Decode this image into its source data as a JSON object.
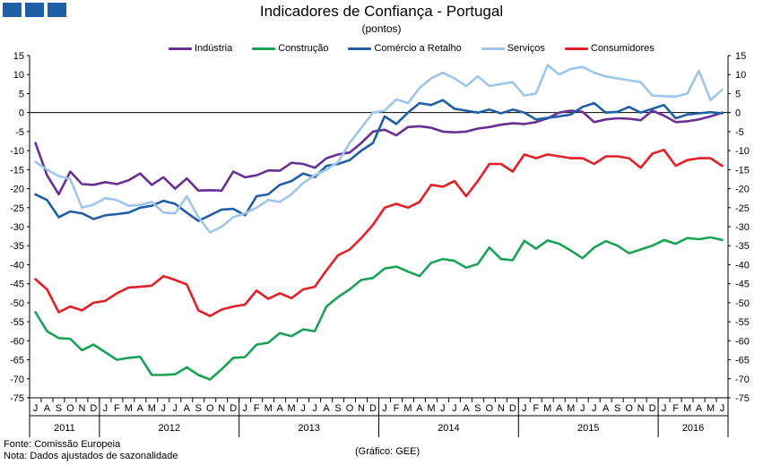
{
  "header": {
    "title": "Indicadores de Confiança - Portugal",
    "subtitle": "(pontos)"
  },
  "legend": [
    {
      "name": "Indústria",
      "color": "#6a2f92"
    },
    {
      "name": "Construção",
      "color": "#1aa356"
    },
    {
      "name": "Comércio a Retalho",
      "color": "#1f5fa5"
    },
    {
      "name": "Serviços",
      "color": "#9dc6ea"
    },
    {
      "name": "Consumidores",
      "color": "#e31f26"
    }
  ],
  "footer": {
    "source": "Fonte: Comissão Europeia",
    "note": "Nota: Dados ajustados de sazonalidade",
    "credit": "(Gráfico: GEE)"
  },
  "chart_data": {
    "type": "line",
    "title": "Indicadores de Confiança - Portugal",
    "ylabel": "(pontos)",
    "ylim": [
      -75,
      15
    ],
    "yticks": [
      15,
      10,
      5,
      0,
      -5,
      -10,
      -15,
      -20,
      -25,
      -30,
      -35,
      -40,
      -45,
      -50,
      -55,
      -60,
      -65,
      -70,
      -75
    ],
    "month_labels": [
      "J",
      "A",
      "S",
      "O",
      "N",
      "D",
      "J",
      "F",
      "M",
      "A",
      "M",
      "J",
      "J",
      "A",
      "S",
      "O",
      "N",
      "D",
      "J",
      "F",
      "M",
      "A",
      "M",
      "J",
      "J",
      "A",
      "S",
      "O",
      "N",
      "D",
      "J",
      "F",
      "M",
      "A",
      "M",
      "J",
      "J",
      "A",
      "S",
      "O",
      "N",
      "D",
      "J",
      "F",
      "M",
      "A",
      "M",
      "J",
      "J",
      "A",
      "S",
      "O",
      "N",
      "D",
      "J",
      "F",
      "M",
      "A",
      "M",
      "J"
    ],
    "years": [
      {
        "label": "2011",
        "start": 0,
        "count": 6
      },
      {
        "label": "2012",
        "start": 6,
        "count": 12
      },
      {
        "label": "2013",
        "start": 18,
        "count": 12
      },
      {
        "label": "2014",
        "start": 30,
        "count": 12
      },
      {
        "label": "2015",
        "start": 42,
        "count": 12
      },
      {
        "label": "2016",
        "start": 54,
        "count": 6
      }
    ],
    "series": [
      {
        "name": "Indústria",
        "color": "#6a2f92",
        "values": [
          -8,
          -16.5,
          -21.5,
          -15.5,
          -18.8,
          -19,
          -18.3,
          -18.8,
          -17.8,
          -16,
          -19,
          -17,
          -20,
          -17.3,
          -20.5,
          -20.4,
          -20.5,
          -15.5,
          -17,
          -16.5,
          -15.2,
          -15.3,
          -13.2,
          -13.5,
          -14.5,
          -12,
          -11,
          -10.5,
          -8,
          -5,
          -4.5,
          -6,
          -3.8,
          -3.6,
          -4,
          -5,
          -5.2,
          -5,
          -4.2,
          -3.8,
          -3.2,
          -2.8,
          -3,
          -2.5,
          -1.5,
          0,
          0.5,
          0.2,
          -2.5,
          -1.8,
          -1.5,
          -1.6,
          -2,
          0.5,
          -0.8,
          -2.5,
          -2.3,
          -1.8,
          -1,
          0
        ]
      },
      {
        "name": "Construção",
        "color": "#1aa356",
        "values": [
          -52.5,
          -57.5,
          -59.3,
          -59.5,
          -62.5,
          -61,
          -63,
          -65,
          -64.5,
          -64.2,
          -69,
          -69,
          -68.8,
          -67,
          -69,
          -70.2,
          -67.5,
          -64.5,
          -64.3,
          -61,
          -60.5,
          -58,
          -58.8,
          -57,
          -57.5,
          -51,
          -48.5,
          -46.5,
          -44,
          -43.5,
          -41,
          -40.5,
          -41.8,
          -43,
          -39.5,
          -38.5,
          -39,
          -40.8,
          -39.8,
          -35.5,
          -38.5,
          -38.8,
          -33.7,
          -35.8,
          -33.6,
          -34.5,
          -36.3,
          -38.3,
          -35.5,
          -33.8,
          -35,
          -37,
          -36,
          -35,
          -33.5,
          -34.5,
          -33,
          -33.3,
          -32.8,
          -33.5
        ]
      },
      {
        "name": "Comércio a Retalho",
        "color": "#1f5fa5",
        "values": [
          -21.5,
          -23,
          -27.5,
          -26,
          -26.5,
          -28,
          -27,
          -26.7,
          -26.3,
          -25,
          -24.5,
          -23.2,
          -24,
          -26.3,
          -28.5,
          -27,
          -25.5,
          -25.3,
          -27,
          -22,
          -21.5,
          -19,
          -18,
          -16,
          -17,
          -14,
          -13.5,
          -12.5,
          -10,
          -8,
          -1,
          -3,
          0,
          2.5,
          2,
          3.3,
          1,
          0.5,
          0,
          0.8,
          -0.2,
          0.8,
          0,
          -1.8,
          -1.4,
          -1,
          -0.5,
          1.5,
          2.5,
          0,
          0.2,
          1.5,
          0,
          1,
          2,
          -1.5,
          -0.5,
          -0.2,
          0.1,
          -0.2
        ]
      },
      {
        "name": "Serviços",
        "color": "#9dc6ea",
        "values": [
          -13,
          -15,
          -16.7,
          -17.5,
          -25,
          -24.2,
          -22.5,
          -23,
          -24.5,
          -24.3,
          -23.5,
          -26.3,
          -26.5,
          -22,
          -27.5,
          -31.5,
          -30,
          -27.5,
          -26.5,
          -25,
          -23,
          -23.5,
          -21.5,
          -18.5,
          -16.5,
          -15,
          -13,
          -8,
          -4,
          0,
          0.5,
          3.5,
          2.5,
          6.5,
          9,
          10.5,
          9,
          7,
          9.5,
          7,
          7.5,
          8,
          4.5,
          5,
          12.5,
          10,
          11.5,
          12,
          10.5,
          9.5,
          9,
          8.5,
          8,
          4.5,
          4.3,
          4.2,
          5,
          11,
          3.3,
          6
        ]
      },
      {
        "name": "Consumidores",
        "color": "#e31f26",
        "values": [
          -43.8,
          -46.5,
          -52.5,
          -51,
          -52,
          -50,
          -49.5,
          -47.5,
          -46,
          -45.8,
          -45.5,
          -43,
          -44,
          -45.2,
          -52,
          -53.5,
          -51.8,
          -51,
          -50.5,
          -46.8,
          -49,
          -47.5,
          -48.8,
          -46.5,
          -45.8,
          -41.5,
          -37.5,
          -36,
          -33,
          -29.5,
          -25,
          -24,
          -25,
          -23.5,
          -19,
          -19.5,
          -18,
          -22,
          -18,
          -13.5,
          -13.5,
          -15.5,
          -11,
          -12,
          -11,
          -11.5,
          -12,
          -12,
          -13.5,
          -11.5,
          -11.5,
          -12,
          -14.5,
          -10.8,
          -9.8,
          -14,
          -12.5,
          -12,
          -12,
          -14
        ]
      }
    ]
  }
}
